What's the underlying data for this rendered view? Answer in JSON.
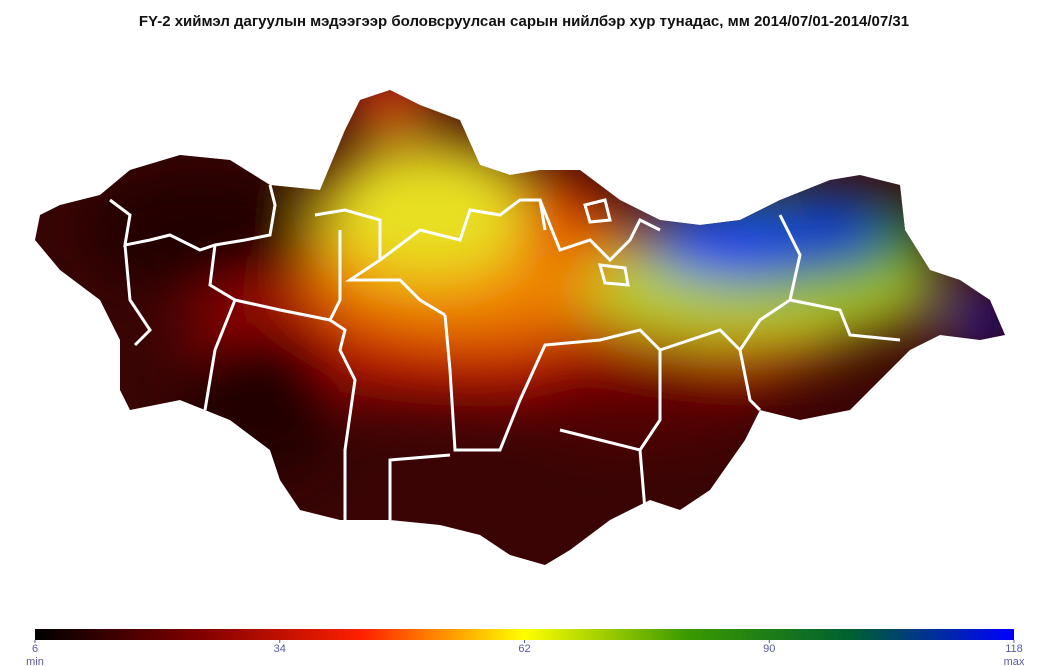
{
  "title": "FY-2  хиймэл дагуулын мэдээгээр боловсруулсан сарын нийлбэр хур тунадас, мм 2014/07/01-2014/07/31",
  "colorbar": {
    "range": [
      6,
      118
    ],
    "ticks": [
      6,
      34,
      62,
      90,
      118
    ],
    "min_label": "min",
    "max_label": "max",
    "colors": [
      "#000000",
      "#800000",
      "#ff2000",
      "#ffff00",
      "#3a9a00",
      "#006030",
      "#0000ff"
    ]
  }
}
